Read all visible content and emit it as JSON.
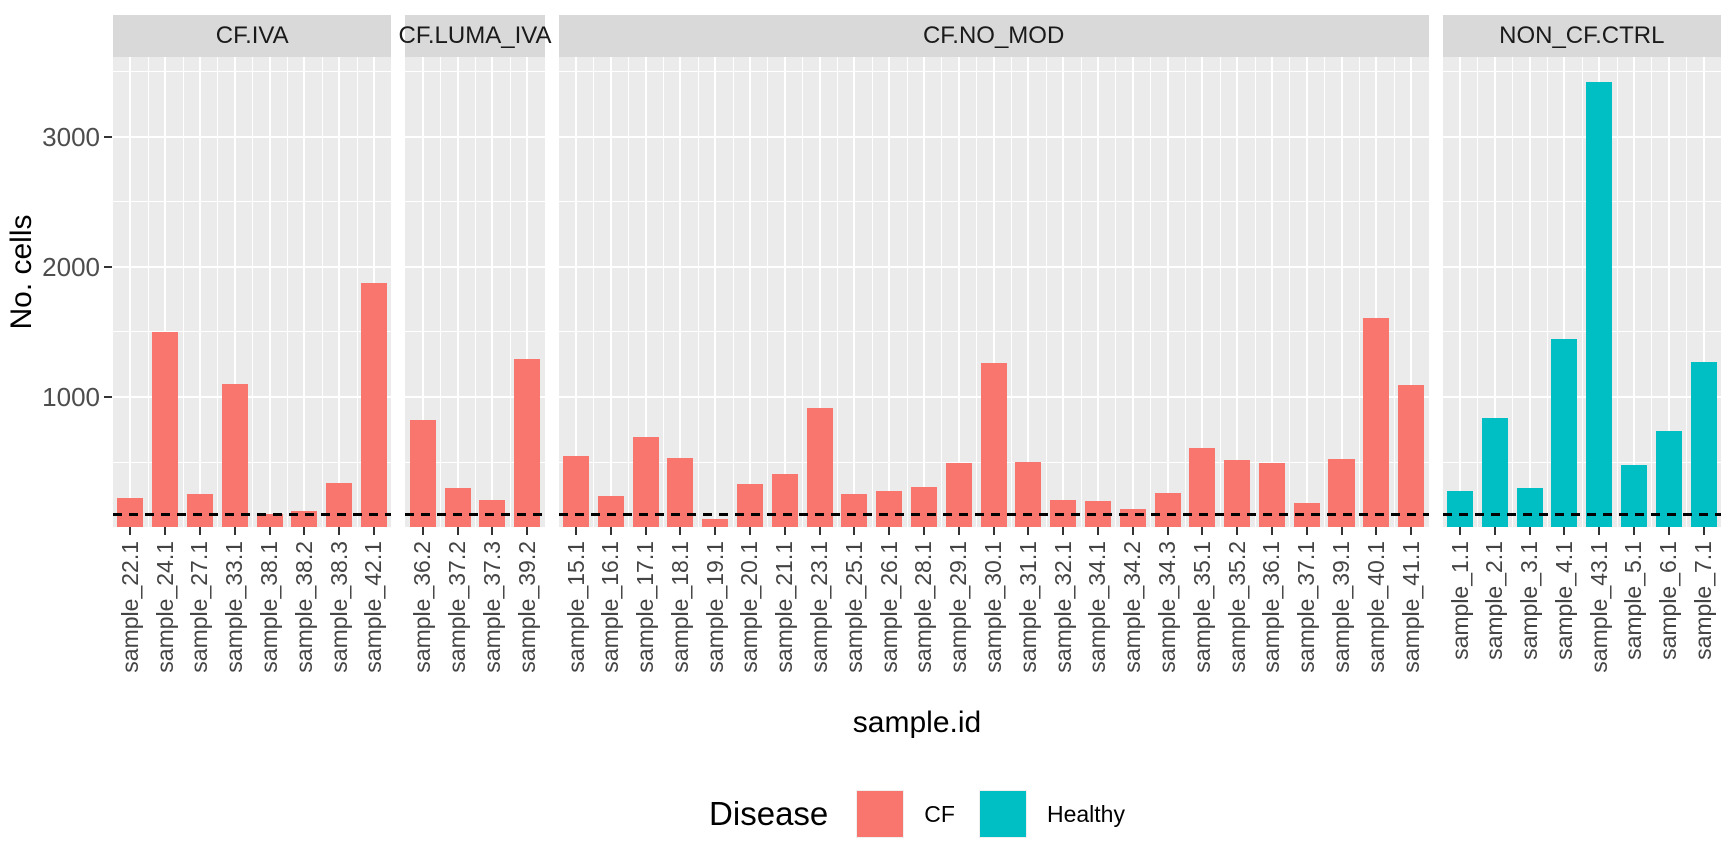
{
  "chart_data": {
    "type": "bar",
    "title": "",
    "xlabel": "sample.id",
    "ylabel": "No. cells",
    "ylim": [
      0,
      3615
    ],
    "yticks": [
      1000,
      2000,
      3000
    ],
    "minor_gridlines": [
      500,
      1500,
      2500,
      3500
    ],
    "grid": "on",
    "reference_line": {
      "value": 100,
      "style": "dashed",
      "color": "#000000"
    },
    "legend": {
      "title": "Disease",
      "position": "bottom",
      "entries": [
        {
          "label": "CF",
          "color": "#F8766D"
        },
        {
          "label": "Healthy",
          "color": "#00BFC4"
        }
      ]
    },
    "facets": [
      {
        "label": "CF.IVA",
        "disease": "CF",
        "bars": [
          {
            "sample": "sample_22.1",
            "value": 220
          },
          {
            "sample": "sample_24.1",
            "value": 1500
          },
          {
            "sample": "sample_27.1",
            "value": 255
          },
          {
            "sample": "sample_33.1",
            "value": 1100
          },
          {
            "sample": "sample_38.1",
            "value": 100
          },
          {
            "sample": "sample_38.2",
            "value": 125
          },
          {
            "sample": "sample_38.3",
            "value": 340
          },
          {
            "sample": "sample_42.1",
            "value": 1875
          }
        ]
      },
      {
        "label": "CF.LUMA_IVA",
        "disease": "CF",
        "bars": [
          {
            "sample": "sample_36.2",
            "value": 820
          },
          {
            "sample": "sample_37.2",
            "value": 300
          },
          {
            "sample": "sample_37.3",
            "value": 210
          },
          {
            "sample": "sample_39.2",
            "value": 1290
          }
        ]
      },
      {
        "label": "CF.NO_MOD",
        "disease": "CF",
        "bars": [
          {
            "sample": "sample_15.1",
            "value": 545
          },
          {
            "sample": "sample_16.1",
            "value": 240
          },
          {
            "sample": "sample_17.1",
            "value": 690
          },
          {
            "sample": "sample_18.1",
            "value": 530
          },
          {
            "sample": "sample_19.1",
            "value": 60
          },
          {
            "sample": "sample_20.1",
            "value": 330
          },
          {
            "sample": "sample_21.1",
            "value": 405
          },
          {
            "sample": "sample_23.1",
            "value": 915
          },
          {
            "sample": "sample_25.1",
            "value": 255
          },
          {
            "sample": "sample_26.1",
            "value": 275
          },
          {
            "sample": "sample_28.1",
            "value": 310
          },
          {
            "sample": "sample_29.1",
            "value": 495
          },
          {
            "sample": "sample_30.1",
            "value": 1260
          },
          {
            "sample": "sample_31.1",
            "value": 500
          },
          {
            "sample": "sample_32.1",
            "value": 205
          },
          {
            "sample": "sample_34.1",
            "value": 200
          },
          {
            "sample": "sample_34.2",
            "value": 135
          },
          {
            "sample": "sample_34.3",
            "value": 260
          },
          {
            "sample": "sample_35.1",
            "value": 605
          },
          {
            "sample": "sample_35.2",
            "value": 515
          },
          {
            "sample": "sample_36.1",
            "value": 495
          },
          {
            "sample": "sample_37.1",
            "value": 185
          },
          {
            "sample": "sample_39.1",
            "value": 525
          },
          {
            "sample": "sample_40.1",
            "value": 1610
          },
          {
            "sample": "sample_41.1",
            "value": 1090
          }
        ]
      },
      {
        "label": "NON_CF.CTRL",
        "disease": "Healthy",
        "bars": [
          {
            "sample": "sample_1.1",
            "value": 275
          },
          {
            "sample": "sample_2.1",
            "value": 840
          },
          {
            "sample": "sample_3.1",
            "value": 300
          },
          {
            "sample": "sample_4.1",
            "value": 1445
          },
          {
            "sample": "sample_43.1",
            "value": 3420
          },
          {
            "sample": "sample_5.1",
            "value": 475
          },
          {
            "sample": "sample_6.1",
            "value": 740
          },
          {
            "sample": "sample_7.1",
            "value": 1270
          }
        ]
      }
    ]
  },
  "colors": {
    "cf": "#F8766D",
    "healthy": "#00BFC4",
    "panel_background": "#EBEBEB",
    "strip_background": "#D9D9D9",
    "gridline": "#FFFFFF"
  }
}
